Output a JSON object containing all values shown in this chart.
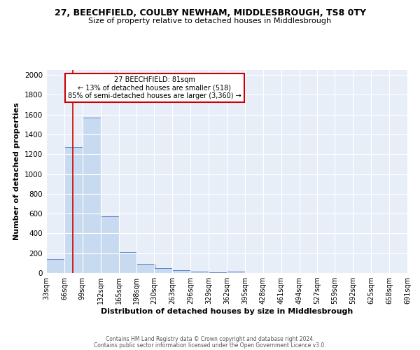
{
  "title_line1": "27, BEECHFIELD, COULBY NEWHAM, MIDDLESBROUGH, TS8 0TY",
  "title_line2": "Size of property relative to detached houses in Middlesbrough",
  "xlabel": "Distribution of detached houses by size in Middlesbrough",
  "ylabel": "Number of detached properties",
  "footer_line1": "Contains HM Land Registry data © Crown copyright and database right 2024.",
  "footer_line2": "Contains public sector information licensed under the Open Government Licence v3.0.",
  "annotation_title": "27 BEECHFIELD: 81sqm",
  "annotation_line2": "← 13% of detached houses are smaller (518)",
  "annotation_line3": "85% of semi-detached houses are larger (3,360) →",
  "property_size": 81,
  "bin_edges": [
    33,
    66,
    99,
    132,
    165,
    198,
    230,
    263,
    296,
    329,
    362,
    395,
    428,
    461,
    494,
    527,
    559,
    592,
    625,
    658,
    691
  ],
  "bar_heights": [
    140,
    1270,
    1570,
    570,
    215,
    95,
    50,
    25,
    15,
    5,
    15,
    0,
    0,
    0,
    0,
    0,
    0,
    0,
    0,
    0
  ],
  "bar_color": "#c8daf0",
  "bar_edge_color": "#4472c4",
  "vline_color": "#cc0000",
  "bg_color": "#e8eef8",
  "grid_color": "#ffffff",
  "ylim": [
    0,
    2050
  ],
  "yticks": [
    0,
    200,
    400,
    600,
    800,
    1000,
    1200,
    1400,
    1600,
    1800,
    2000
  ],
  "annotation_box_facecolor": "#ffffff",
  "annotation_box_edgecolor": "#cc0000",
  "title_fontsize": 9,
  "subtitle_fontsize": 8,
  "xlabel_fontsize": 8,
  "ylabel_fontsize": 8,
  "tick_fontsize": 7,
  "footer_fontsize": 5.5
}
